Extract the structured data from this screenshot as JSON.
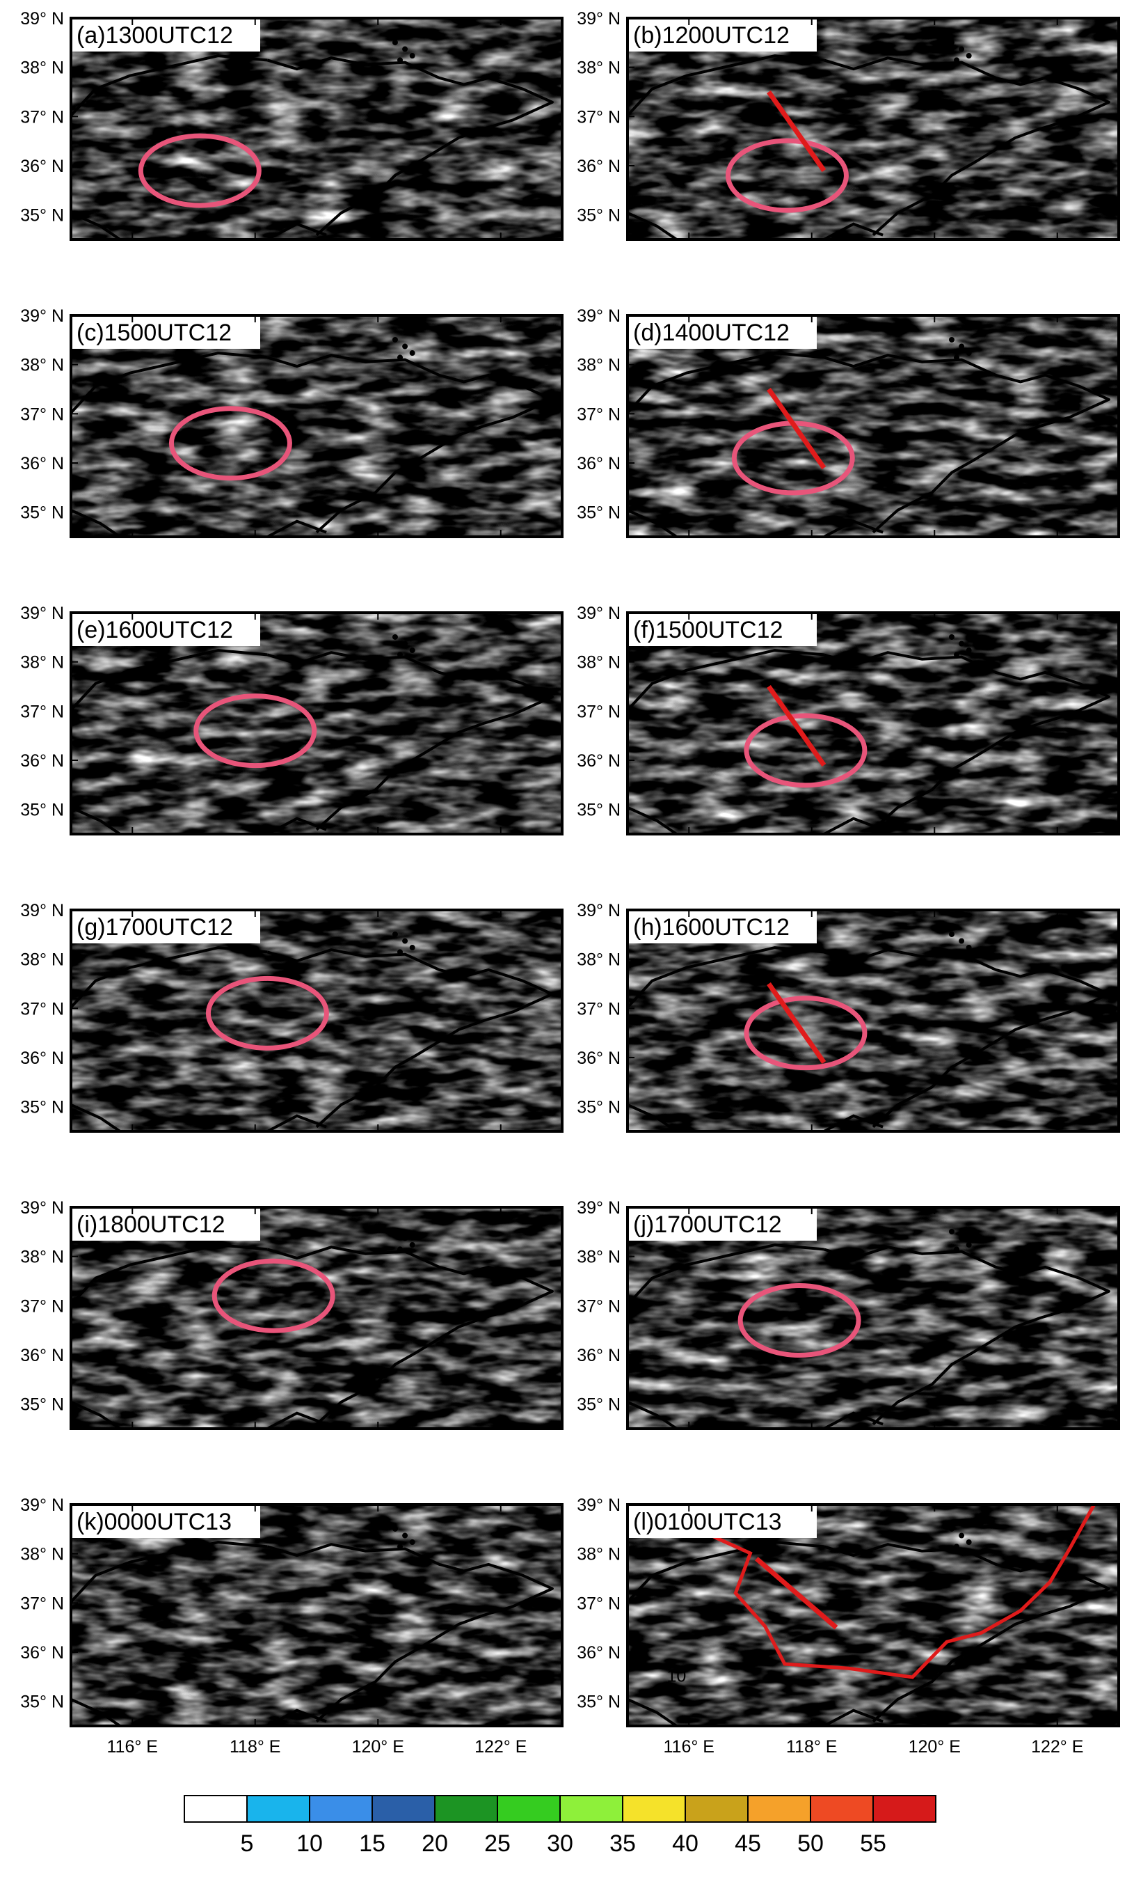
{
  "figure": {
    "lat_ticks": [
      "39° N",
      "38° N",
      "37° N",
      "36° N",
      "35° N"
    ],
    "lon_ticks": [
      "116° E",
      "118° E",
      "120° E",
      "122° E"
    ],
    "lon_range": [
      115,
      123
    ],
    "lat_range": [
      34.5,
      39
    ]
  },
  "panels": [
    {
      "label": "(a)1300UTC12",
      "col": 0,
      "row": 0,
      "rad": {
        "a": 0.17,
        "b": 0.07,
        "c": 0.03,
        "d": 0.0
      },
      "ellipse": {
        "lon": 117.1,
        "lat": 35.9
      },
      "line": null
    },
    {
      "label": "(b)1200UTC12",
      "col": 1,
      "row": 0,
      "rad": {
        "a": 0.2,
        "b": 0.12,
        "c": 0.05,
        "d": 0.0
      },
      "ellipse": {
        "lon": 117.6,
        "lat": 35.8
      },
      "line": {
        "from": [
          117.3,
          37.5
        ],
        "to": [
          118.2,
          35.9
        ]
      }
    },
    {
      "label": "(c)1500UTC12",
      "col": 0,
      "row": 1,
      "rad": {
        "a": 0.22,
        "b": 0.1,
        "c": 0.05,
        "d": 0.04
      },
      "ellipse": {
        "lon": 117.6,
        "lat": 36.4
      },
      "line": null
    },
    {
      "label": "(d)1400UTC12",
      "col": 1,
      "row": 1,
      "rad": {
        "a": 0.24,
        "b": 0.14,
        "c": 0.07,
        "d": 0.0
      },
      "ellipse": {
        "lon": 117.7,
        "lat": 36.1
      },
      "line": {
        "from": [
          117.3,
          37.5
        ],
        "to": [
          118.2,
          35.9
        ]
      }
    },
    {
      "label": "(e)1600UTC12",
      "col": 0,
      "row": 2,
      "rad": {
        "a": 0.26,
        "b": 0.14,
        "c": 0.07,
        "d": 0.05
      },
      "ellipse": {
        "lon": 118.0,
        "lat": 36.6
      },
      "line": null
    },
    {
      "label": "(f)1500UTC12",
      "col": 1,
      "row": 2,
      "rad": {
        "a": 0.27,
        "b": 0.16,
        "c": 0.09,
        "d": 0.02
      },
      "ellipse": {
        "lon": 117.9,
        "lat": 36.2
      },
      "line": {
        "from": [
          117.3,
          37.5
        ],
        "to": [
          118.2,
          35.9
        ]
      }
    },
    {
      "label": "(g)1700UTC12",
      "col": 0,
      "row": 3,
      "rad": {
        "a": 0.29,
        "b": 0.17,
        "c": 0.09,
        "d": 0.05
      },
      "ellipse": {
        "lon": 118.2,
        "lat": 36.9
      },
      "line": null
    },
    {
      "label": "(h)1600UTC12",
      "col": 1,
      "row": 3,
      "rad": {
        "a": 0.29,
        "b": 0.18,
        "c": 0.1,
        "d": 0.02
      },
      "ellipse": {
        "lon": 117.9,
        "lat": 36.5
      },
      "line": {
        "from": [
          117.3,
          37.5
        ],
        "to": [
          118.2,
          35.9
        ]
      }
    },
    {
      "label": "(i)1800UTC12",
      "col": 0,
      "row": 4,
      "rad": {
        "a": 0.3,
        "b": 0.18,
        "c": 0.1,
        "d": 0.05
      },
      "ellipse": {
        "lon": 118.3,
        "lat": 37.2
      },
      "line": null
    },
    {
      "label": "(j)1700UTC12",
      "col": 1,
      "row": 4,
      "rad": {
        "a": 0.3,
        "b": 0.19,
        "c": 0.1,
        "d": 0.03
      },
      "ellipse": {
        "lon": 117.8,
        "lat": 36.7
      },
      "line": null
    },
    {
      "label": "(k)0000UTC13",
      "col": 0,
      "row": 5,
      "rad": {
        "a": 0.34,
        "b": 0.22,
        "c": 0.1,
        "d": 0.02
      },
      "ellipse": null,
      "line": null
    },
    {
      "label": "(l)0100UTC13",
      "col": 1,
      "row": 5,
      "rad": {
        "a": 0.36,
        "b": 0.24,
        "c": 0.12,
        "d": 0.03
      },
      "ellipse": null,
      "line": {
        "from": [
          117.1,
          37.9
        ],
        "to": [
          118.4,
          36.5
        ]
      },
      "contour_label": "10"
    }
  ],
  "colorbar": {
    "labels": [
      "5",
      "10",
      "15",
      "20",
      "25",
      "30",
      "35",
      "40",
      "45",
      "50",
      "55"
    ],
    "colors": [
      "#ffffff",
      "#19b4ec",
      "#3a8ee8",
      "#2a5fa8",
      "#1c9423",
      "#35cc20",
      "#8ef03a",
      "#f5e22a",
      "#c9a21b",
      "#f5a12a",
      "#ee4a23",
      "#d61a1a"
    ]
  }
}
